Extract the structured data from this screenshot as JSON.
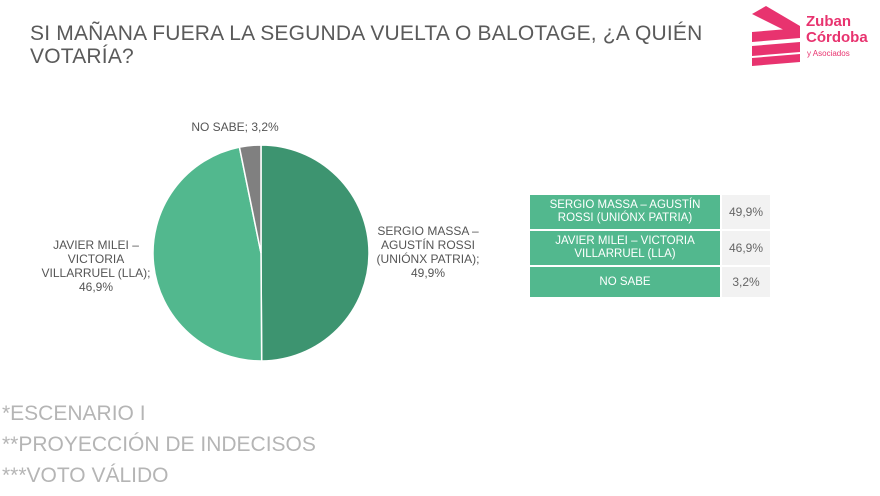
{
  "title": "SI MAÑANA FUERA LA SEGUNDA VUELTA O BALOTAGE, ¿A QUIÉN VOTARÍA?",
  "logo": {
    "name_line1": "Zuban",
    "name_line2": "Córdoba",
    "sub": "y Asociados",
    "color": "#e8336f"
  },
  "labels": {
    "no_sabe": "NO SABE; 3,2%",
    "massa": "SERGIO MASSA – AGUSTÍN ROSSI (UNIÓNX PATRIA); 49,9%",
    "milei": "JAVIER MILEI – VICTORIA VILLARRUEL (LLA); 46,9%"
  },
  "table": [
    {
      "name": "SERGIO MASSA – AGUSTÍN ROSSI (UNIÓNX PATRIA)",
      "value": "49,9%"
    },
    {
      "name": "JAVIER MILEI – VICTORIA VILLARRUEL (LLA)",
      "value": "46,9%"
    },
    {
      "name": "NO SABE",
      "value": "3,2%"
    }
  ],
  "notes": [
    "*ESCENARIO I",
    "**PROYECCIÓN DE INDECISOS",
    "***VOTO VÁLIDO"
  ],
  "chart_data": {
    "type": "pie",
    "title": "SI MAÑANA FUERA LA SEGUNDA VUELTA O BALOTAGE, ¿A QUIÉN VOTARÍA?",
    "categories": [
      "SERGIO MASSA – AGUSTÍN ROSSI (UNIÓNX PATRIA)",
      "JAVIER MILEI – VICTORIA VILLARRUEL (LLA)",
      "NO SABE"
    ],
    "values": [
      49.9,
      46.9,
      3.2
    ],
    "colors": [
      "#3d9470",
      "#52b88e",
      "#808080"
    ],
    "start": "12 o'clock, clockwise"
  }
}
